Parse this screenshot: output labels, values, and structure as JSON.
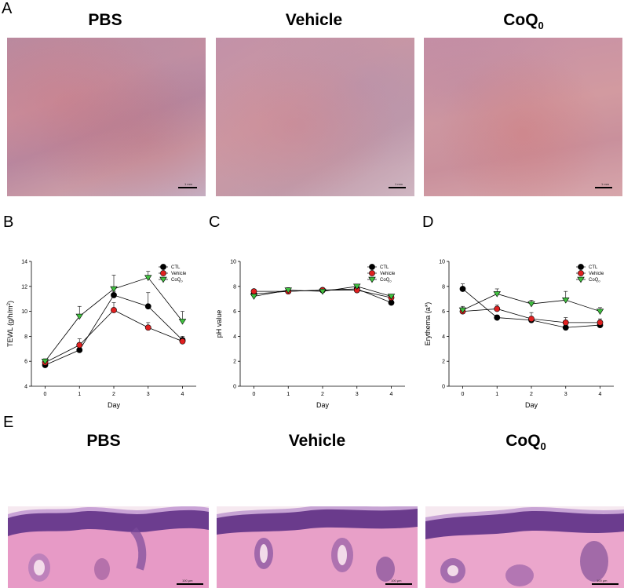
{
  "panels": {
    "A": "A",
    "B": "B",
    "C": "C",
    "D": "D",
    "E": "E"
  },
  "photo_titles": [
    {
      "main": "PBS",
      "sub": ""
    },
    {
      "main": "Vehicle",
      "sub": ""
    },
    {
      "main": "CoQ",
      "sub": "0"
    }
  ],
  "photo_scale": [
    "1 mm",
    "1 mm",
    "1 mm"
  ],
  "histo_scale": [
    "100 μm",
    "100 μm",
    "100 μm"
  ],
  "colors": {
    "CTL": "#000000",
    "Vehicle": "#e02020",
    "CoQ0": "#40c040"
  },
  "chart_data": [
    {
      "type": "line",
      "xlabel": "Day",
      "ylabel_main": "TEWL (g/h/m",
      "ylabel_sup": "2",
      "ylabel_tail": ")",
      "x": [
        0,
        1,
        2,
        3,
        4
      ],
      "ylim": [
        4,
        14
      ],
      "yticks": [
        4,
        6,
        8,
        10,
        12,
        14
      ],
      "series": [
        {
          "name": "CTL",
          "values": [
            5.7,
            6.9,
            11.3,
            10.4,
            7.7
          ],
          "err": [
            0.1,
            0.15,
            0.3,
            1.1,
            0.3
          ]
        },
        {
          "name": "Vehicle",
          "values": [
            5.9,
            7.3,
            10.1,
            8.7,
            7.6
          ],
          "err": [
            0.1,
            0.5,
            0.6,
            0.4,
            0.2
          ]
        },
        {
          "name": "CoQ",
          "name_sub": "0",
          "values": [
            6.0,
            9.6,
            11.8,
            12.7,
            9.2
          ],
          "err": [
            0.2,
            0.8,
            1.1,
            0.5,
            0.8
          ]
        }
      ]
    },
    {
      "type": "line",
      "xlabel": "Day",
      "ylabel_main": "pH value",
      "ylabel_sup": "",
      "ylabel_tail": "",
      "x": [
        0,
        1,
        2,
        3,
        4
      ],
      "ylim": [
        0,
        10
      ],
      "yticks": [
        0,
        2,
        4,
        6,
        8,
        10
      ],
      "series": [
        {
          "name": "CTL",
          "values": [
            7.4,
            7.6,
            7.7,
            7.8,
            6.7
          ],
          "err": [
            0.1,
            0.1,
            0.1,
            0.1,
            0.2
          ]
        },
        {
          "name": "Vehicle",
          "values": [
            7.6,
            7.6,
            7.7,
            7.7,
            7.1
          ],
          "err": [
            0.1,
            0.1,
            0.1,
            0.2,
            0.1
          ]
        },
        {
          "name": "CoQ",
          "name_sub": "0",
          "values": [
            7.2,
            7.7,
            7.6,
            8.0,
            7.2
          ],
          "err": [
            0.1,
            0.2,
            0.1,
            0.1,
            0.1
          ]
        }
      ]
    },
    {
      "type": "line",
      "xlabel": "Day",
      "ylabel_main": "Erythema (a*)",
      "ylabel_sup": "",
      "ylabel_tail": "",
      "x": [
        0,
        1,
        2,
        3,
        4
      ],
      "ylim": [
        0,
        10
      ],
      "yticks": [
        0,
        2,
        4,
        6,
        8,
        10
      ],
      "series": [
        {
          "name": "CTL",
          "values": [
            7.8,
            5.5,
            5.3,
            4.7,
            4.9
          ],
          "err": [
            0.4,
            0.2,
            0.2,
            0.2,
            0.2
          ]
        },
        {
          "name": "Vehicle",
          "values": [
            6.0,
            6.2,
            5.4,
            5.1,
            5.1
          ],
          "err": [
            0.3,
            0.3,
            0.5,
            0.4,
            0.3
          ]
        },
        {
          "name": "CoQ",
          "name_sub": "0",
          "values": [
            6.1,
            7.4,
            6.6,
            6.9,
            6.0
          ],
          "err": [
            0.3,
            0.4,
            0.3,
            0.7,
            0.3
          ]
        }
      ]
    }
  ]
}
